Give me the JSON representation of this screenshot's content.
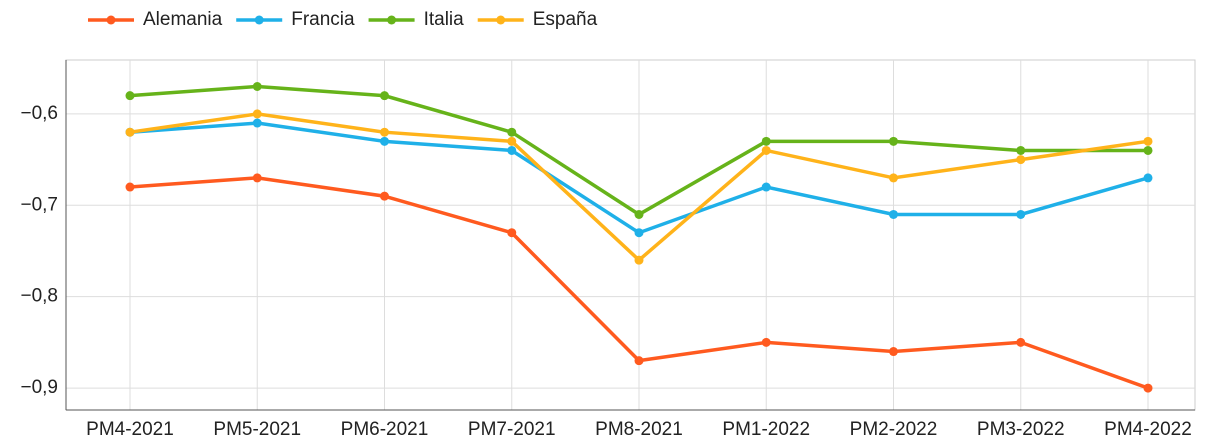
{
  "chart_data": {
    "type": "line",
    "categories": [
      "PM4-2021",
      "PM5-2021",
      "PM6-2021",
      "PM7-2021",
      "PM8-2021",
      "PM1-2022",
      "PM2-2022",
      "PM3-2022",
      "PM4-2022"
    ],
    "series": [
      {
        "name": "Alemania",
        "color": "#ff5a1f",
        "values": [
          -0.68,
          -0.67,
          -0.69,
          -0.73,
          -0.87,
          -0.85,
          -0.86,
          -0.85,
          -0.9
        ]
      },
      {
        "name": "Francia",
        "color": "#1fb0e8",
        "values": [
          -0.62,
          -0.61,
          -0.63,
          -0.64,
          -0.73,
          -0.68,
          -0.71,
          -0.71,
          -0.67
        ]
      },
      {
        "name": "Italia",
        "color": "#66b31a",
        "values": [
          -0.58,
          -0.57,
          -0.58,
          -0.62,
          -0.71,
          -0.63,
          -0.63,
          -0.64,
          -0.64
        ]
      },
      {
        "name": "España",
        "color": "#ffb31a",
        "values": [
          -0.62,
          -0.6,
          -0.62,
          -0.63,
          -0.76,
          -0.64,
          -0.67,
          -0.65,
          -0.63
        ]
      }
    ],
    "ylim": [
      -0.924,
      -0.541
    ],
    "yticks": [
      {
        "value": -0.6,
        "label": "−0,6"
      },
      {
        "value": -0.7,
        "label": "−0,7"
      },
      {
        "value": -0.8,
        "label": "−0,8"
      },
      {
        "value": -0.9,
        "label": "−0,9"
      }
    ],
    "grid": true,
    "legend": "top-left"
  }
}
